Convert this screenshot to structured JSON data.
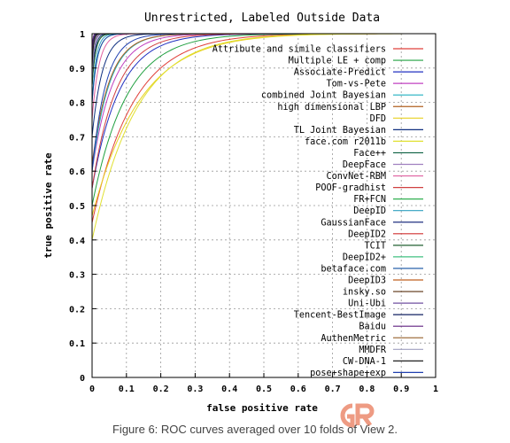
{
  "chart_data": {
    "type": "line",
    "title": "Unrestricted, Labeled Outside Data",
    "xlabel": "false positive rate",
    "ylabel": "true positive rate",
    "xlim": [
      0,
      1
    ],
    "ylim": [
      0,
      1
    ],
    "xticks": [
      "0",
      "0.1",
      "0.2",
      "0.3",
      "0.4",
      "0.5",
      "0.6",
      "0.7",
      "0.8",
      "0.9",
      "1"
    ],
    "yticks": [
      "0",
      "0.1",
      "0.2",
      "0.3",
      "0.4",
      "0.5",
      "0.6",
      "0.7",
      "0.8",
      "0.9",
      "1"
    ],
    "grid": true,
    "legend": "top-right",
    "series": [
      {
        "name": "Attribute and simile classifiers",
        "color": "#e0403a",
        "start": 0.45,
        "k": 0.12
      },
      {
        "name": "Multiple LE + comp",
        "color": "#20a040",
        "start": 0.5,
        "k": 0.1
      },
      {
        "name": "Associate-Predict",
        "color": "#2030c0",
        "start": 0.55,
        "k": 0.08
      },
      {
        "name": "Tom-vs-Pete",
        "color": "#c040c0",
        "start": 0.6,
        "k": 0.06
      },
      {
        "name": "combined Joint Bayesian",
        "color": "#20b0c0",
        "start": 0.6,
        "k": 0.05
      },
      {
        "name": "high dimensional LBP",
        "color": "#b06020",
        "start": 0.62,
        "k": 0.05
      },
      {
        "name": "DFD",
        "color": "#e8d020",
        "start": 0.47,
        "k": 0.14
      },
      {
        "name": "TL Joint Bayesian",
        "color": "#103080",
        "start": 0.7,
        "k": 0.03
      },
      {
        "name": "face.com r2011b",
        "color": "#e0e030",
        "start": 0.4,
        "k": 0.13
      },
      {
        "name": "Face++",
        "color": "#0a6040",
        "start": 0.85,
        "k": 0.01
      },
      {
        "name": "DeepFace",
        "color": "#a080c0",
        "start": 0.8,
        "k": 0.015
      },
      {
        "name": "ConvNet-RBM",
        "color": "#e060a0",
        "start": 0.75,
        "k": 0.02
      },
      {
        "name": "POOF-gradhist",
        "color": "#d04040",
        "start": 0.55,
        "k": 0.07
      },
      {
        "name": "FR+FCN",
        "color": "#30b050",
        "start": 0.85,
        "k": 0.008
      },
      {
        "name": "DeepID",
        "color": "#30a0c0",
        "start": 0.8,
        "k": 0.012
      },
      {
        "name": "GaussianFace",
        "color": "#203080",
        "start": 0.85,
        "k": 0.008
      },
      {
        "name": "DeepID2",
        "color": "#d03030",
        "start": 0.88,
        "k": 0.005
      },
      {
        "name": "TCIT",
        "color": "#206030",
        "start": 0.85,
        "k": 0.01
      },
      {
        "name": "DeepID2+",
        "color": "#40c080",
        "start": 0.9,
        "k": 0.004
      },
      {
        "name": "betaface.com",
        "color": "#1050a0",
        "start": 0.8,
        "k": 0.015
      },
      {
        "name": "DeepID3",
        "color": "#c06020",
        "start": 0.9,
        "k": 0.003
      },
      {
        "name": "insky.so",
        "color": "#5a3010",
        "start": 0.88,
        "k": 0.006
      },
      {
        "name": "Uni-Ubi",
        "color": "#7050a0",
        "start": 0.87,
        "k": 0.006
      },
      {
        "name": "Tencent-BestImage",
        "color": "#102060",
        "start": 0.92,
        "k": 0.003
      },
      {
        "name": "Baidu",
        "color": "#602080",
        "start": 0.93,
        "k": 0.002
      },
      {
        "name": "AuthenMetric",
        "color": "#a07040",
        "start": 0.9,
        "k": 0.004
      },
      {
        "name": "MMDFR",
        "color": "#a0a0c0",
        "start": 0.88,
        "k": 0.005
      },
      {
        "name": "CW-DNA-1",
        "color": "#202020",
        "start": 0.9,
        "k": 0.004
      },
      {
        "name": "pose+shape+exp",
        "color": "#2040b0",
        "start": 0.6,
        "k": 0.04
      }
    ]
  },
  "caption": "Figure 6: ROC curves averaged over 10 folds of View 2."
}
